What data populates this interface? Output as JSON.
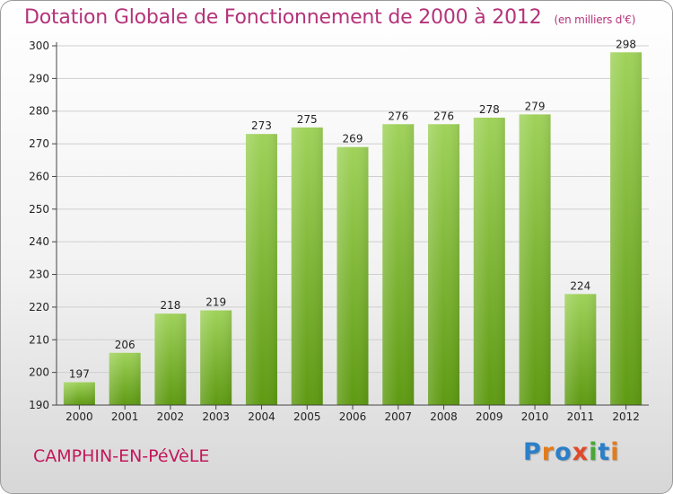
{
  "header": {
    "title": "Dotation Globale de Fonctionnement de 2000 à 2012",
    "unit": "(en milliers d'€)"
  },
  "footer": {
    "city": "CAMPHIN-EN-PéVèLE",
    "logo": "Proxiti"
  },
  "chart_data": {
    "type": "bar",
    "title": "Dotation Globale de Fonctionnement de 2000 à 2012",
    "subtitle": "(en milliers d'€)",
    "xlabel": "",
    "ylabel": "",
    "categories": [
      "2000",
      "2001",
      "2002",
      "2003",
      "2004",
      "2005",
      "2006",
      "2007",
      "2008",
      "2009",
      "2010",
      "2011",
      "2012"
    ],
    "values": [
      197,
      206,
      218,
      219,
      273,
      275,
      269,
      276,
      276,
      278,
      279,
      224,
      298
    ],
    "ylim": [
      190,
      300
    ],
    "yticks": [
      190,
      200,
      210,
      220,
      230,
      240,
      250,
      260,
      270,
      280,
      290,
      300
    ],
    "grid": true,
    "colors": {
      "bar_top": "#9fd25a",
      "bar_bottom": "#5e9a12",
      "grid": "#cfcfcf"
    }
  }
}
